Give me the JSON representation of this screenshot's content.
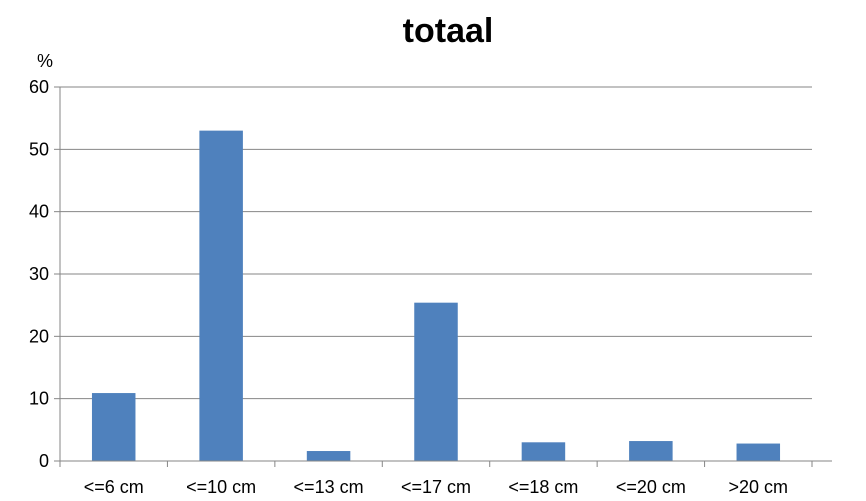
{
  "chart_data": {
    "type": "bar",
    "title": "totaal",
    "ylabel": "%",
    "xlabel": "",
    "categories": [
      "<=6 cm",
      "<=10 cm",
      "<=13 cm",
      "<=17 cm",
      "<=18 cm",
      "<=20 cm",
      ">20 cm"
    ],
    "values": [
      10.9,
      53.0,
      1.6,
      25.4,
      3.0,
      3.2,
      2.8
    ],
    "ylim": [
      0,
      60
    ],
    "yticks": [
      "0",
      "10",
      "20",
      "30",
      "40",
      "50",
      "60"
    ],
    "grid": true,
    "legend": "none",
    "colors": {
      "bar": "#4f81bd",
      "grid": "#868686",
      "axis": "#868686"
    }
  }
}
